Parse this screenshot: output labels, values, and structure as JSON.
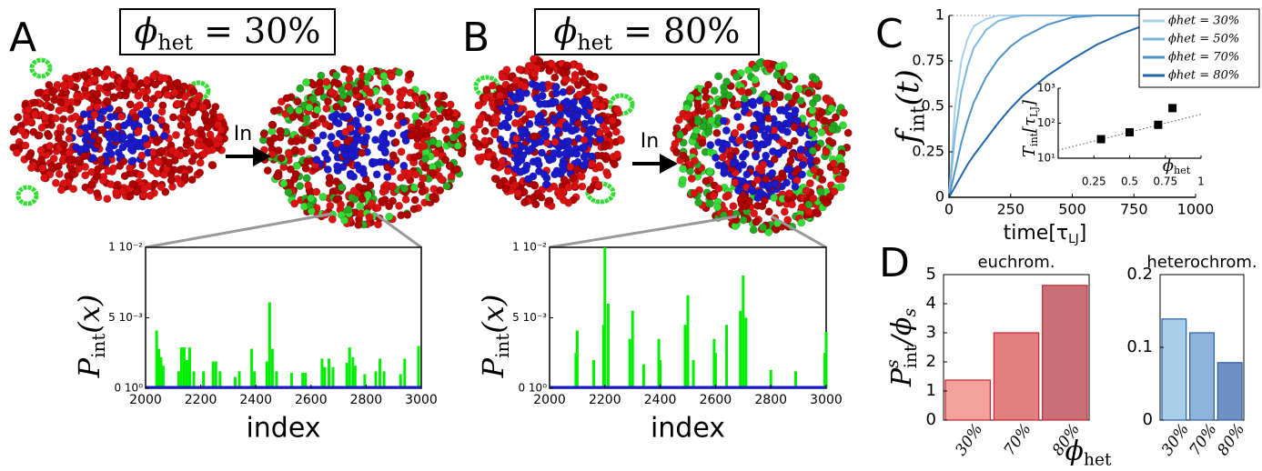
{
  "panel_labels": [
    "A",
    "B",
    "C",
    "D"
  ],
  "chart_data": [
    {
      "type": "spike",
      "title": [
        "ϕ",
        "het",
        " = 30%"
      ],
      "annotation": "In",
      "xlabel": "index",
      "ylabel": [
        "P",
        "int",
        "(x)"
      ],
      "xlim": [
        2000,
        3000
      ],
      "xticks": [
        2000,
        2200,
        2400,
        2600,
        2800,
        3000
      ],
      "ylim": [
        0,
        0.01
      ],
      "yticks": [
        {
          "value": 0,
          "label": "0 10⁰"
        },
        {
          "value": 0.005,
          "label": "5 10⁻³"
        },
        {
          "value": 0.01,
          "label": "1 10⁻²"
        }
      ],
      "color": "#00ee00",
      "x": [
        2040,
        2048,
        2056,
        2064,
        2120,
        2130,
        2140,
        2150,
        2160,
        2175,
        2210,
        2245,
        2255,
        2270,
        2325,
        2340,
        2385,
        2395,
        2440,
        2450,
        2460,
        2475,
        2530,
        2570,
        2580,
        2640,
        2650,
        2665,
        2680,
        2730,
        2740,
        2752,
        2760,
        2795,
        2835,
        2850,
        2865,
        2925,
        2940,
        2990
      ],
      "values": [
        0.0041,
        0.0028,
        0.0022,
        0.0016,
        0.0012,
        0.0029,
        0.0029,
        0.002,
        0.0029,
        0.0012,
        0.0012,
        0.0019,
        0.0019,
        0.0012,
        0.0008,
        0.0012,
        0.0028,
        0.0012,
        0.0019,
        0.0061,
        0.0028,
        0.0012,
        0.0011,
        0.0011,
        0.0011,
        0.0021,
        0.0015,
        0.0021,
        0.0015,
        0.0018,
        0.0029,
        0.0022,
        0.0016,
        0.001,
        0.0012,
        0.0021,
        0.0012,
        0.001,
        0.0021,
        0.003
      ]
    },
    {
      "type": "spike",
      "title": [
        "ϕ",
        "het",
        " = 80%"
      ],
      "annotation": "In",
      "xlabel": "index",
      "ylabel": [
        "P",
        "int",
        "(x)"
      ],
      "xlim": [
        2000,
        3000
      ],
      "xticks": [
        2000,
        2200,
        2400,
        2600,
        2800,
        3000
      ],
      "ylim": [
        0,
        0.01
      ],
      "yticks": [
        {
          "value": 0,
          "label": "0 10⁰"
        },
        {
          "value": 0.005,
          "label": "5 10⁻³"
        },
        {
          "value": 0.01,
          "label": "1 10⁻²"
        }
      ],
      "color": "#00ee00",
      "x": [
        2095,
        2100,
        2160,
        2195,
        2200,
        2212,
        2290,
        2300,
        2340,
        2395,
        2400,
        2490,
        2500,
        2520,
        2595,
        2600,
        2640,
        2690,
        2700,
        2710,
        2800,
        2890,
        2995,
        3000
      ],
      "values": [
        0.0025,
        0.0041,
        0.002,
        0.0045,
        0.01,
        0.006,
        0.0035,
        0.0055,
        0.0017,
        0.0035,
        0.002,
        0.0045,
        0.0066,
        0.002,
        0.0035,
        0.0025,
        0.0045,
        0.0055,
        0.008,
        0.005,
        0.0013,
        0.0012,
        0.0025,
        0.004
      ]
    },
    {
      "type": "line",
      "xlabel": [
        "time[τ",
        "LJ",
        "]"
      ],
      "ylabel": [
        "f",
        "int",
        "(t)"
      ],
      "xlim": [
        0,
        1000
      ],
      "xticks": [
        0,
        250,
        500,
        750,
        1000
      ],
      "ylim": [
        0,
        1
      ],
      "yticks": [
        0,
        0.25,
        0.5,
        0.75,
        1
      ],
      "legend": "upper right",
      "x": [
        0,
        25,
        50,
        75,
        100,
        150,
        200,
        250,
        300,
        400,
        500,
        600,
        700,
        800,
        900,
        1000
      ],
      "series": [
        {
          "name": "ϕhet = 30%",
          "color": "#a9d0e8",
          "values": [
            0,
            0.5,
            0.75,
            0.87,
            0.94,
            0.98,
            1,
            1,
            1,
            1,
            1,
            1,
            1,
            1,
            1,
            1
          ]
        },
        {
          "name": "ϕhet = 50%",
          "color": "#7fb6dc",
          "values": [
            0,
            0.35,
            0.58,
            0.72,
            0.82,
            0.92,
            0.97,
            0.99,
            1,
            1,
            1,
            1,
            1,
            1,
            1,
            1
          ]
        },
        {
          "name": "ϕhet = 70%",
          "color": "#4f92c8",
          "values": [
            0,
            0.15,
            0.3,
            0.42,
            0.52,
            0.66,
            0.76,
            0.83,
            0.88,
            0.95,
            0.99,
            1,
            1,
            1,
            1,
            1
          ]
        },
        {
          "name": "ϕhet = 80%",
          "color": "#2266aa",
          "values": [
            0,
            0.06,
            0.12,
            0.18,
            0.23,
            0.32,
            0.41,
            0.49,
            0.56,
            0.67,
            0.76,
            0.84,
            0.9,
            0.95,
            0.98,
            1
          ]
        }
      ],
      "inset": {
        "type": "scatter",
        "xlabel": [
          "ϕ",
          "het"
        ],
        "ylabel": [
          "T",
          "int",
          "[τ",
          "LJ",
          "]"
        ],
        "xlim": [
          0,
          1
        ],
        "xticks": [
          0.25,
          0.5,
          0.75,
          1
        ],
        "log_y": true,
        "ylim": [
          10,
          1000
        ],
        "yticks": [
          {
            "value": 10,
            "label": "10¹"
          },
          {
            "value": 100,
            "label": "10²"
          },
          {
            "value": 1000,
            "label": "10³"
          }
        ],
        "color": "#000000",
        "x": [
          0.3,
          0.5,
          0.7,
          0.8
        ],
        "values": [
          35,
          55,
          90,
          270
        ],
        "trend": {
          "x": [
            0,
            1
          ],
          "values": [
            17,
            180
          ]
        }
      }
    },
    {
      "type": "bar",
      "title": "euchrom.",
      "ylabel": {
        "base": "P",
        "sup": "s",
        "sub": "int",
        "rest": "/ϕ",
        "rest_sub": "s"
      },
      "xlabel": [
        "ϕ",
        "het"
      ],
      "categories": [
        "30%",
        "70%",
        "80%"
      ],
      "values": [
        1.375,
        3.0,
        4.63
      ],
      "colors": [
        "#f4a19c",
        "#e2807f",
        "#c96f77"
      ],
      "edgecolor": "#cc2233",
      "ylim": [
        0,
        5
      ],
      "yticks": [
        0,
        1,
        2,
        3,
        4,
        5
      ]
    },
    {
      "type": "bar",
      "title": "heterochrom.",
      "categories": [
        "30%",
        "70%",
        "80%"
      ],
      "values": [
        0.139,
        0.12,
        0.079
      ],
      "colors": [
        "#a9cfe8",
        "#8fb4dc",
        "#6f90c2"
      ],
      "edgecolor": "#2a5ea8",
      "ylim": [
        0,
        0.2
      ],
      "yticks": [
        0,
        0.1,
        0.2
      ]
    }
  ]
}
